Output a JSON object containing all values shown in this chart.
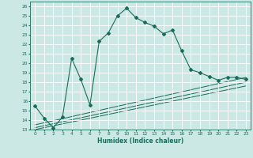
{
  "xlabel": "Humidex (Indice chaleur)",
  "xlim": [
    -0.5,
    23.5
  ],
  "ylim": [
    13,
    26.5
  ],
  "yticks": [
    13,
    14,
    15,
    16,
    17,
    18,
    19,
    20,
    21,
    22,
    23,
    24,
    25,
    26
  ],
  "xticks": [
    0,
    1,
    2,
    3,
    4,
    5,
    6,
    7,
    8,
    9,
    10,
    11,
    12,
    13,
    14,
    15,
    16,
    17,
    18,
    19,
    20,
    21,
    22,
    23
  ],
  "bg_color": "#cce8e4",
  "line_color": "#1a6b5a",
  "grid_color": "#ffffff",
  "main_line_x": [
    0,
    1,
    2,
    3,
    4,
    5,
    6,
    7,
    8,
    9,
    10,
    11,
    12,
    13,
    14,
    15,
    16,
    17,
    18,
    19,
    20,
    21,
    22,
    23
  ],
  "main_line_y": [
    15.5,
    14.2,
    13.2,
    14.3,
    20.5,
    18.3,
    15.6,
    22.3,
    23.2,
    25.0,
    25.8,
    24.8,
    24.3,
    23.9,
    23.1,
    23.5,
    21.3,
    19.3,
    19.0,
    18.6,
    18.2,
    18.5,
    18.5,
    18.3
  ],
  "line2_x": [
    0,
    23
  ],
  "line2_y": [
    13.5,
    18.5
  ],
  "line3_x": [
    0,
    23
  ],
  "line3_y": [
    13.2,
    18.0
  ],
  "line4_x": [
    0,
    23
  ],
  "line4_y": [
    13.0,
    17.6
  ]
}
